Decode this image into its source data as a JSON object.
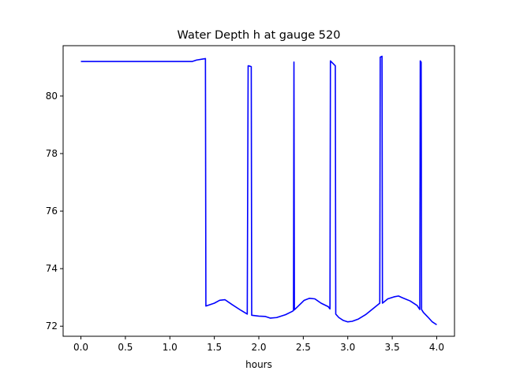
{
  "chart_data": {
    "type": "line",
    "title": "Water Depth h at gauge 520",
    "xlabel": "hours",
    "ylabel": "",
    "xlim": [
      -0.2,
      4.2
    ],
    "ylim": [
      71.65,
      81.75
    ],
    "xticks": [
      0.0,
      0.5,
      1.0,
      1.5,
      2.0,
      2.5,
      3.0,
      3.5,
      4.0
    ],
    "xtick_labels": [
      "0.0",
      "0.5",
      "1.0",
      "1.5",
      "2.0",
      "2.5",
      "3.0",
      "3.5",
      "4.0"
    ],
    "yticks": [
      72,
      74,
      76,
      78,
      80
    ],
    "ytick_labels": [
      "72",
      "74",
      "76",
      "78",
      "80"
    ],
    "grid": false,
    "series": [
      {
        "color": "#0000ff",
        "x": [
          0.0,
          1.25,
          1.3,
          1.4,
          1.405,
          1.5,
          1.56,
          1.62,
          1.7,
          1.8,
          1.87,
          1.88,
          1.885,
          1.915,
          1.92,
          2.0,
          2.07,
          2.13,
          2.2,
          2.3,
          2.38,
          2.39,
          2.395,
          2.4,
          2.45,
          2.51,
          2.57,
          2.63,
          2.7,
          2.78,
          2.8,
          2.805,
          2.86,
          2.865,
          2.9,
          2.95,
          3.0,
          3.05,
          3.12,
          3.2,
          3.3,
          3.36,
          3.365,
          3.385,
          3.39,
          3.45,
          3.52,
          3.57,
          3.62,
          3.7,
          3.78,
          3.81,
          3.815,
          3.825,
          3.83,
          3.85,
          3.9,
          3.95,
          4.0
        ],
        "y": [
          81.2,
          81.2,
          81.25,
          81.3,
          72.7,
          72.8,
          72.9,
          72.92,
          72.75,
          72.55,
          72.42,
          81.05,
          81.05,
          81.02,
          72.38,
          72.35,
          72.34,
          72.28,
          72.3,
          72.4,
          72.52,
          72.55,
          81.18,
          72.57,
          72.72,
          72.9,
          72.97,
          72.95,
          72.8,
          72.68,
          72.6,
          81.22,
          81.05,
          72.42,
          72.3,
          72.2,
          72.15,
          72.17,
          72.25,
          72.4,
          72.65,
          72.8,
          81.35,
          81.38,
          72.8,
          72.95,
          73.02,
          73.05,
          72.98,
          72.88,
          72.72,
          72.58,
          81.22,
          81.18,
          72.58,
          72.48,
          72.32,
          72.15,
          72.05
        ]
      }
    ]
  }
}
